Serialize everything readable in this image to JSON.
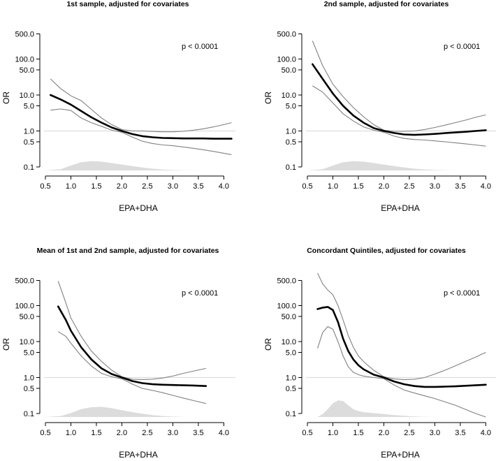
{
  "chart_data": [
    {
      "type": "line",
      "title": "1st sample, adjusted for covariates",
      "xlabel": "EPA+DHA",
      "ylabel": "OR",
      "p_value_text": "p < 0.0001",
      "xlim": [
        0.5,
        4.2
      ],
      "ylim_log": [
        0.08,
        800
      ],
      "x_ticks": [
        "0.5",
        "1.0",
        "1.5",
        "2.0",
        "2.5",
        "3.0",
        "3.5",
        "4.0"
      ],
      "y_ticks": [
        "0.1",
        "0.5",
        "1.0",
        "5.0",
        "10.0",
        "50.0",
        "100.0",
        "500.0"
      ],
      "reference_line": 1.0,
      "series": [
        {
          "name": "OR",
          "x": [
            0.6,
            0.8,
            1.0,
            1.2,
            1.4,
            1.6,
            1.8,
            2.0,
            2.2,
            2.4,
            2.6,
            2.8,
            3.0,
            3.2,
            3.4,
            3.6,
            3.8,
            4.0,
            4.15
          ],
          "y": [
            10,
            7.5,
            5.4,
            3.6,
            2.4,
            1.7,
            1.25,
            1.0,
            0.82,
            0.72,
            0.67,
            0.64,
            0.63,
            0.62,
            0.62,
            0.62,
            0.61,
            0.61,
            0.61
          ]
        },
        {
          "name": "upper 95% CI",
          "x": [
            0.6,
            0.8,
            1.0,
            1.2,
            1.4,
            1.6,
            1.8,
            2.0,
            2.2,
            2.4,
            2.6,
            2.8,
            3.0,
            3.2,
            3.4,
            3.6,
            3.8,
            4.0,
            4.15
          ],
          "y": [
            28,
            15,
            9.5,
            7,
            4,
            2.3,
            1.5,
            1.1,
            1.0,
            1.0,
            0.97,
            0.95,
            0.95,
            0.98,
            1.05,
            1.15,
            1.3,
            1.5,
            1.7
          ]
        },
        {
          "name": "lower 95% CI",
          "x": [
            0.6,
            0.8,
            1.0,
            1.2,
            1.4,
            1.6,
            1.8,
            2.0,
            2.2,
            2.4,
            2.6,
            2.8,
            3.0,
            3.2,
            3.4,
            3.6,
            3.8,
            4.0,
            4.15
          ],
          "y": [
            3.8,
            4.1,
            3.7,
            2.3,
            1.7,
            1.35,
            1.05,
            0.92,
            0.68,
            0.52,
            0.45,
            0.41,
            0.39,
            0.36,
            0.33,
            0.3,
            0.27,
            0.24,
            0.22
          ]
        }
      ],
      "density": {
        "x": [
          0.5,
          0.8,
          1.0,
          1.2,
          1.4,
          1.6,
          1.8,
          2.0,
          2.2,
          2.4,
          2.6,
          2.8,
          3.0,
          3.2,
          3.4,
          3.6
        ],
        "y": [
          0.0,
          0.06,
          0.25,
          0.42,
          0.47,
          0.45,
          0.38,
          0.3,
          0.22,
          0.15,
          0.09,
          0.05,
          0.02,
          0.01,
          0.005,
          0.0
        ]
      }
    },
    {
      "type": "line",
      "title": "2nd sample, adjusted for covariates",
      "xlabel": "EPA+DHA",
      "ylabel": "OR",
      "p_value_text": "p < 0.0001",
      "xlim": [
        0.5,
        4.2
      ],
      "ylim_log": [
        0.08,
        800
      ],
      "x_ticks": [
        "0.5",
        "1.0",
        "1.5",
        "2.0",
        "2.5",
        "3.0",
        "3.5",
        "4.0"
      ],
      "y_ticks": [
        "0.1",
        "0.5",
        "1.0",
        "5.0",
        "10.0",
        "50.0",
        "100.0",
        "500.0"
      ],
      "reference_line": 1.0,
      "series": [
        {
          "name": "OR",
          "x": [
            0.6,
            0.8,
            1.0,
            1.2,
            1.4,
            1.6,
            1.8,
            2.0,
            2.2,
            2.4,
            2.6,
            2.8,
            3.0,
            3.2,
            3.4,
            3.6,
            3.8,
            4.0
          ],
          "y": [
            72,
            28,
            11,
            5,
            2.7,
            1.7,
            1.2,
            1.0,
            0.88,
            0.8,
            0.78,
            0.8,
            0.83,
            0.87,
            0.91,
            0.95,
            1.0,
            1.05
          ]
        },
        {
          "name": "upper 95% CI",
          "x": [
            0.6,
            0.8,
            1.0,
            1.2,
            1.4,
            1.6,
            1.8,
            2.0,
            2.2,
            2.4,
            2.6,
            2.8,
            3.0,
            3.2,
            3.4,
            3.6,
            3.8,
            4.0
          ],
          "y": [
            320,
            65,
            20,
            9,
            4.5,
            2.5,
            1.5,
            1.05,
            0.98,
            0.98,
            1.0,
            1.1,
            1.25,
            1.45,
            1.7,
            2.0,
            2.4,
            2.8
          ]
        },
        {
          "name": "lower 95% CI",
          "x": [
            0.6,
            0.8,
            1.0,
            1.2,
            1.4,
            1.6,
            1.8,
            2.0,
            2.2,
            2.4,
            2.6,
            2.8,
            3.0,
            3.2,
            3.4,
            3.6,
            3.8,
            4.0
          ],
          "y": [
            18,
            12,
            6,
            3,
            1.9,
            1.3,
            1.05,
            0.92,
            0.72,
            0.62,
            0.58,
            0.56,
            0.53,
            0.5,
            0.47,
            0.44,
            0.41,
            0.38
          ]
        }
      ],
      "density": {
        "x": [
          0.5,
          0.8,
          1.0,
          1.2,
          1.4,
          1.6,
          1.8,
          2.0,
          2.2,
          2.4,
          2.6,
          2.8,
          3.0,
          3.2,
          3.4,
          3.6
        ],
        "y": [
          0.0,
          0.06,
          0.25,
          0.42,
          0.47,
          0.45,
          0.38,
          0.3,
          0.22,
          0.15,
          0.09,
          0.05,
          0.02,
          0.01,
          0.005,
          0.0
        ]
      }
    },
    {
      "type": "line",
      "title": "Mean of 1st and 2nd sample, adjusted for covariates",
      "xlabel": "EPA+DHA",
      "ylabel": "OR",
      "p_value_text": "p < 0.0001",
      "xlim": [
        0.5,
        4.2
      ],
      "ylim_log": [
        0.08,
        800
      ],
      "x_ticks": [
        "0.5",
        "1.0",
        "1.5",
        "2.0",
        "2.5",
        "3.0",
        "3.5",
        "4.0"
      ],
      "y_ticks": [
        "0.1",
        "0.5",
        "1.0",
        "5.0",
        "10.0",
        "50.0",
        "100.0",
        "500.0"
      ],
      "reference_line": 1.0,
      "series": [
        {
          "name": "OR",
          "x": [
            0.75,
            0.9,
            1.0,
            1.2,
            1.4,
            1.6,
            1.8,
            2.0,
            2.2,
            2.4,
            2.6,
            2.8,
            3.0,
            3.2,
            3.4,
            3.65
          ],
          "y": [
            95,
            40,
            20,
            7,
            3.2,
            1.8,
            1.25,
            1.0,
            0.8,
            0.7,
            0.65,
            0.63,
            0.62,
            0.61,
            0.6,
            0.58
          ]
        },
        {
          "name": "upper 95% CI",
          "x": [
            0.75,
            0.9,
            1.0,
            1.2,
            1.4,
            1.6,
            1.8,
            2.0,
            2.2,
            2.4,
            2.6,
            2.8,
            3.0,
            3.2,
            3.4,
            3.65
          ],
          "y": [
            480,
            120,
            45,
            14,
            5.5,
            2.8,
            1.6,
            1.05,
            0.9,
            0.88,
            0.9,
            0.97,
            1.1,
            1.3,
            1.5,
            1.8
          ]
        },
        {
          "name": "lower 95% CI",
          "x": [
            0.75,
            0.9,
            1.0,
            1.2,
            1.4,
            1.6,
            1.8,
            2.0,
            2.2,
            2.4,
            2.6,
            2.8,
            3.0,
            3.2,
            3.4,
            3.65
          ],
          "y": [
            19,
            14,
            9,
            4,
            2.1,
            1.3,
            1.05,
            0.92,
            0.66,
            0.5,
            0.44,
            0.38,
            0.32,
            0.27,
            0.23,
            0.19
          ]
        }
      ],
      "density": {
        "x": [
          0.5,
          0.8,
          1.0,
          1.2,
          1.4,
          1.6,
          1.8,
          2.0,
          2.2,
          2.4,
          2.6,
          2.8,
          3.0,
          3.2,
          3.4
        ],
        "y": [
          0.0,
          0.05,
          0.2,
          0.4,
          0.5,
          0.52,
          0.45,
          0.35,
          0.25,
          0.17,
          0.1,
          0.05,
          0.02,
          0.005,
          0.0
        ]
      }
    },
    {
      "type": "line",
      "title": "Concordant Quintiles, adjusted for covariates",
      "xlabel": "EPA+DHA",
      "ylabel": "OR",
      "p_value_text": "p < 0.0001",
      "xlim": [
        0.5,
        4.2
      ],
      "ylim_log": [
        0.08,
        800
      ],
      "x_ticks": [
        "0.5",
        "1.0",
        "1.5",
        "2.0",
        "2.5",
        "3.0",
        "3.5",
        "4.0"
      ],
      "y_ticks": [
        "0.1",
        "0.5",
        "1.0",
        "5.0",
        "10.0",
        "50.0",
        "100.0",
        "500.0"
      ],
      "reference_line": 1.0,
      "series": [
        {
          "name": "OR",
          "x": [
            0.7,
            0.8,
            0.9,
            1.0,
            1.1,
            1.2,
            1.3,
            1.4,
            1.5,
            1.6,
            1.8,
            2.0,
            2.2,
            2.4,
            2.6,
            2.8,
            3.0,
            3.2,
            3.4,
            3.6,
            3.8,
            4.0
          ],
          "y": [
            80,
            88,
            92,
            75,
            35,
            12,
            5.5,
            3.2,
            2.2,
            1.7,
            1.2,
            1.0,
            0.78,
            0.65,
            0.58,
            0.55,
            0.55,
            0.56,
            0.57,
            0.59,
            0.61,
            0.63
          ]
        },
        {
          "name": "upper 95% CI",
          "x": [
            0.7,
            0.8,
            0.9,
            1.0,
            1.1,
            1.2,
            1.3,
            1.4,
            1.5,
            1.6,
            1.8,
            2.0,
            2.2,
            2.4,
            2.6,
            2.8,
            3.0,
            3.2,
            3.4,
            3.6,
            3.8,
            4.0
          ],
          "y": [
            800,
            400,
            270,
            200,
            100,
            40,
            15,
            7,
            4,
            2.8,
            1.6,
            1.05,
            0.92,
            0.87,
            0.9,
            1.0,
            1.25,
            1.6,
            2.1,
            2.8,
            3.7,
            5.0
          ]
        },
        {
          "name": "lower 95% CI",
          "x": [
            0.7,
            0.8,
            0.9,
            1.0,
            1.1,
            1.2,
            1.3,
            1.4,
            1.5,
            1.6,
            1.8,
            2.0,
            2.2,
            2.4,
            2.6,
            2.8,
            3.0,
            3.2,
            3.4,
            3.6,
            3.8,
            4.0
          ],
          "y": [
            6.5,
            18,
            26,
            22,
            10,
            4,
            2,
            1.4,
            1.2,
            1.1,
            1.0,
            0.93,
            0.62,
            0.45,
            0.37,
            0.31,
            0.26,
            0.21,
            0.17,
            0.13,
            0.1,
            0.08
          ]
        }
      ],
      "density": {
        "x": [
          0.7,
          0.8,
          0.9,
          1.0,
          1.1,
          1.2,
          1.3,
          1.4,
          1.5,
          1.6,
          1.8,
          2.0,
          2.2,
          2.4,
          2.6,
          2.8,
          3.0
        ],
        "y": [
          0.0,
          0.15,
          0.4,
          0.7,
          0.85,
          0.82,
          0.6,
          0.4,
          0.3,
          0.25,
          0.2,
          0.15,
          0.1,
          0.06,
          0.03,
          0.01,
          0.0
        ]
      }
    }
  ]
}
